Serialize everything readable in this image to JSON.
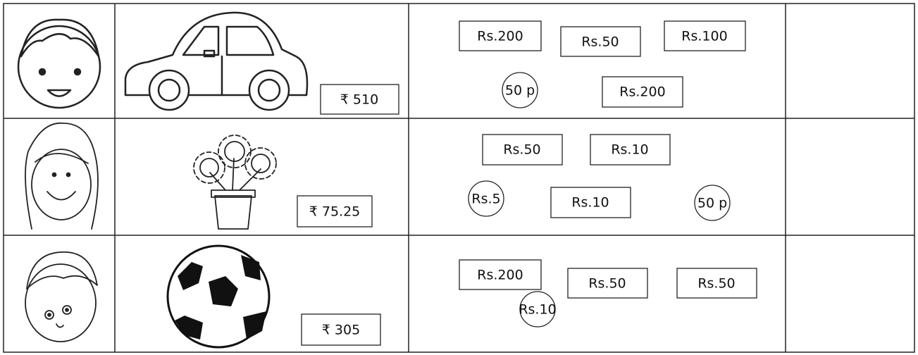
{
  "table": {
    "rows": [
      {
        "price": "₹ 510",
        "money": [
          "Rs.200",
          "Rs.50",
          "Rs.100",
          "50 p",
          "Rs.200"
        ]
      },
      {
        "price": "₹ 75.25",
        "money": [
          "Rs.50",
          "Rs.10",
          "Rs.5",
          "Rs.10",
          "50 p"
        ]
      },
      {
        "price": "₹ 305",
        "money": [
          "Rs.200",
          "Rs.50",
          "Rs.50",
          "Rs.10"
        ]
      }
    ]
  }
}
